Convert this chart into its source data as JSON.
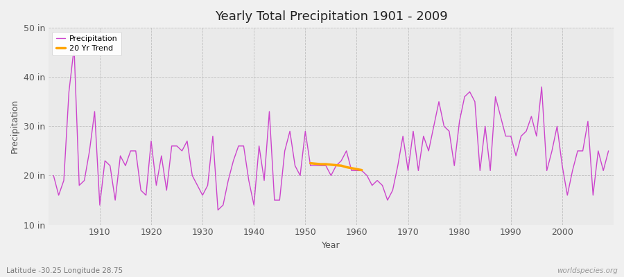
{
  "title": "Yearly Total Precipitation 1901 - 2009",
  "xlabel": "Year",
  "ylabel": "Precipitation",
  "lat_lon_label": "Latitude -30.25 Longitude 28.75",
  "watermark": "worldspecies.org",
  "bg_color": "#f0f0f0",
  "plot_bg_color": "#eaeaea",
  "line_color": "#cc44cc",
  "trend_color": "#ffa500",
  "ylim": [
    10,
    50
  ],
  "yticks": [
    10,
    20,
    30,
    40,
    50
  ],
  "ytick_labels": [
    "10 in",
    "20 in",
    "30 in",
    "40 in",
    "50 in"
  ],
  "years": [
    1901,
    1902,
    1903,
    1904,
    1905,
    1906,
    1907,
    1908,
    1909,
    1910,
    1911,
    1912,
    1913,
    1914,
    1915,
    1916,
    1917,
    1918,
    1919,
    1920,
    1921,
    1922,
    1923,
    1924,
    1925,
    1926,
    1927,
    1928,
    1929,
    1930,
    1931,
    1932,
    1933,
    1934,
    1935,
    1936,
    1937,
    1938,
    1939,
    1940,
    1941,
    1942,
    1943,
    1944,
    1945,
    1946,
    1947,
    1948,
    1949,
    1950,
    1951,
    1952,
    1953,
    1954,
    1955,
    1956,
    1957,
    1958,
    1959,
    1960,
    1961,
    1962,
    1963,
    1964,
    1965,
    1966,
    1967,
    1968,
    1969,
    1970,
    1971,
    1972,
    1973,
    1974,
    1975,
    1976,
    1977,
    1978,
    1979,
    1980,
    1981,
    1982,
    1983,
    1984,
    1985,
    1986,
    1987,
    1988,
    1989,
    1990,
    1991,
    1992,
    1993,
    1994,
    1995,
    1996,
    1997,
    1998,
    1999,
    2000,
    2001,
    2002,
    2003,
    2004,
    2005,
    2006,
    2007,
    2008,
    2009
  ],
  "precip": [
    20,
    16,
    19,
    37,
    46,
    18,
    19,
    25,
    33,
    14,
    23,
    22,
    15,
    24,
    22,
    25,
    25,
    17,
    16,
    27,
    18,
    24,
    17,
    26,
    26,
    25,
    27,
    20,
    18,
    16,
    18,
    28,
    13,
    14,
    19,
    23,
    26,
    26,
    19,
    14,
    26,
    19,
    33,
    15,
    15,
    25,
    29,
    22,
    20,
    29,
    22,
    22,
    22,
    22,
    20,
    22,
    23,
    25,
    21,
    21,
    21,
    20,
    18,
    19,
    18,
    15,
    17,
    22,
    28,
    21,
    29,
    21,
    28,
    25,
    30,
    35,
    30,
    29,
    22,
    31,
    36,
    37,
    35,
    21,
    30,
    21,
    36,
    32,
    28,
    28,
    24,
    28,
    29,
    32,
    28,
    38,
    21,
    25,
    30,
    22,
    16,
    21,
    25,
    25,
    31,
    16,
    25,
    21,
    25
  ],
  "trend_years": [
    1951,
    1952,
    1953,
    1954,
    1955,
    1956,
    1957,
    1958,
    1959,
    1960,
    1961
  ],
  "trend_values": [
    22.5,
    22.4,
    22.3,
    22.3,
    22.2,
    22.1,
    22.0,
    21.7,
    21.5,
    21.3,
    21.1
  ]
}
